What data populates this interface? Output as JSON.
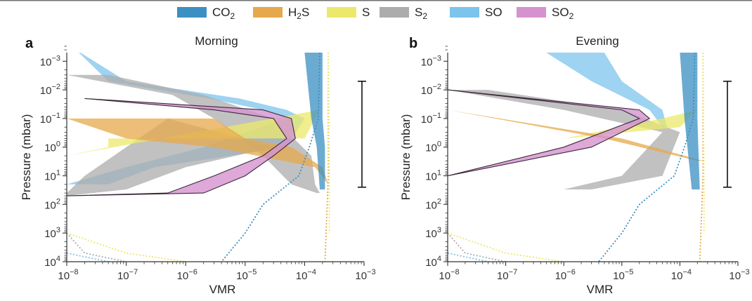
{
  "legend": [
    {
      "key": "co2",
      "label": "CO",
      "sub": "2",
      "color": "#3b8fc2"
    },
    {
      "key": "h2s",
      "label": "H",
      "sub": "2",
      "label2": "S",
      "color": "#e5a84a"
    },
    {
      "key": "s",
      "label": "S",
      "color": "#ece86a"
    },
    {
      "key": "s2",
      "label": "S",
      "sub": "2",
      "color": "#acacac"
    },
    {
      "key": "so",
      "label": "SO",
      "color": "#7dc4ec"
    },
    {
      "key": "so2",
      "label": "SO",
      "sub": "2",
      "color": "#d692cf"
    }
  ],
  "axes": {
    "xlabel": "VMR",
    "ylabel": "Pressure (mbar)",
    "x_ticks": [
      {
        "base": "10",
        "exp": "−8",
        "v": -8
      },
      {
        "base": "10",
        "exp": "−7",
        "v": -7
      },
      {
        "base": "10",
        "exp": "−6",
        "v": -6
      },
      {
        "base": "10",
        "exp": "−5",
        "v": -5
      },
      {
        "base": "10",
        "exp": "−4",
        "v": -4
      },
      {
        "base": "10",
        "exp": "−3",
        "v": -3
      }
    ],
    "y_ticks": [
      {
        "base": "10",
        "exp": "−3",
        "v": -3
      },
      {
        "base": "10",
        "exp": "−2",
        "v": -2
      },
      {
        "base": "10",
        "exp": "−1",
        "v": -1
      },
      {
        "base": "10",
        "exp": "0",
        "v": 0
      },
      {
        "base": "10",
        "exp": "1",
        "v": 1
      },
      {
        "base": "10",
        "exp": "2",
        "v": 2
      },
      {
        "base": "10",
        "exp": "3",
        "v": 3
      },
      {
        "base": "10",
        "exp": "4",
        "v": 4
      }
    ]
  },
  "chart_data": [
    {
      "type": "area",
      "letter": "a",
      "title": "Morning",
      "x_scale": "log",
      "y_scale": "log",
      "y_inverted": true,
      "xlim": [
        1e-08,
        0.001
      ],
      "ylim": [
        0.0005,
        10000
      ],
      "pressure_range_bar": [
        0.005,
        25
      ],
      "series": [
        {
          "name": "SO",
          "lo": [
            [
              0.0005,
              1.6e-08
            ],
            [
              0.005,
              5e-08
            ],
            [
              0.02,
              2.5e-06
            ],
            [
              0.05,
              2e-05
            ],
            [
              0.1,
              5e-05
            ],
            [
              1,
              2e-06
            ],
            [
              5,
              1e-07
            ],
            [
              20,
              1e-08
            ]
          ],
          "hi": [
            [
              0.0005,
              1.7e-08
            ],
            [
              0.005,
              1e-07
            ],
            [
              0.02,
              8e-06
            ],
            [
              0.05,
              5e-05
            ],
            [
              0.1,
              0.0001
            ],
            [
              1,
              5e-05
            ],
            [
              5,
              3e-07
            ],
            [
              20,
              5e-08
            ]
          ]
        },
        {
          "name": "S2",
          "lo": [
            [
              0.003,
              1e-08
            ],
            [
              0.015,
              6e-07
            ],
            [
              0.1,
              3e-06
            ],
            [
              2,
              2e-05
            ],
            [
              20,
              6e-05
            ],
            [
              40,
              0.00016
            ]
          ],
          "hi": [
            [
              0.003,
              5e-08
            ],
            [
              0.015,
              2e-06
            ],
            [
              0.1,
              3e-05
            ],
            [
              2,
              0.00013
            ],
            [
              20,
              0.00015
            ],
            [
              40,
              0.00018
            ]
          ],
          "extra": [
            [
              0.1,
              5e-07
            ],
            [
              1,
              1e-07
            ],
            [
              10,
              2e-08
            ],
            [
              40,
              1e-08
            ],
            [
              50,
              1e-08
            ],
            [
              30,
              1e-07
            ],
            [
              5,
              1e-06
            ],
            [
              1,
              3e-05
            ]
          ]
        },
        {
          "name": "S",
          "lo": [
            [
              0.5,
              5e-08
            ],
            [
              1,
              5e-08
            ],
            [
              2,
              1e-08
            ]
          ],
          "hi": [
            [
              0.5,
              0.0001
            ],
            [
              0.1,
              0.00015
            ],
            [
              0.05,
              0.00018
            ]
          ]
        },
        {
          "name": "H2S",
          "lo": [
            [
              0.1,
              1e-08
            ],
            [
              0.5,
              1e-07
            ],
            [
              1,
              3e-06
            ],
            [
              5,
              0.00015
            ],
            [
              20,
              0.00025
            ]
          ],
          "hi": [
            [
              0.1,
              3e-06
            ],
            [
              0.5,
              1e-05
            ],
            [
              1,
              6e-05
            ],
            [
              5,
              0.0002
            ],
            [
              20,
              0.00025
            ]
          ]
        },
        {
          "name": "SO2",
          "lo": [
            [
              0.02,
              2e-08
            ],
            [
              0.05,
              3e-06
            ],
            [
              0.1,
              3e-05
            ],
            [
              0.5,
              5e-05
            ],
            [
              2,
              2e-05
            ],
            [
              10,
              3e-06
            ],
            [
              40,
              5e-07
            ],
            [
              50,
              1e-08
            ]
          ],
          "hi": [
            [
              0.02,
              2e-08
            ],
            [
              0.05,
              2e-05
            ],
            [
              0.1,
              6e-05
            ],
            [
              0.5,
              7e-05
            ],
            [
              2,
              3e-05
            ],
            [
              10,
              1e-05
            ],
            [
              40,
              2e-06
            ],
            [
              50,
              1e-08
            ]
          ]
        },
        {
          "name": "CO2",
          "lo": [
            [
              0.0005,
              0.0001
            ],
            [
              0.1,
              0.00013
            ],
            [
              1,
              0.00016
            ],
            [
              30,
              0.00018
            ]
          ],
          "hi": [
            [
              0.0005,
              0.0002
            ],
            [
              0.1,
              0.0002
            ],
            [
              1,
              0.00022
            ],
            [
              30,
              0.00022
            ]
          ]
        }
      ]
    },
    {
      "type": "area",
      "letter": "b",
      "title": "Evening",
      "x_scale": "log",
      "y_scale": "log",
      "y_inverted": true,
      "xlim": [
        1e-08,
        0.001
      ],
      "ylim": [
        0.0005,
        10000
      ],
      "pressure_range_bar": [
        0.005,
        25
      ],
      "series": [
        {
          "name": "SO",
          "lo": [
            [
              0.0005,
              5e-07
            ],
            [
              0.005,
              3e-06
            ],
            [
              0.05,
              3e-05
            ],
            [
              0.2,
              5e-05
            ]
          ],
          "hi": [
            [
              0.0005,
              5e-06
            ],
            [
              0.005,
              1e-05
            ],
            [
              0.05,
              5e-05
            ],
            [
              0.2,
              6e-05
            ]
          ]
        },
        {
          "name": "S2",
          "lo": [
            [
              0.01,
              1e-08
            ],
            [
              0.05,
              1e-06
            ],
            [
              0.3,
              5e-05
            ],
            [
              10,
              1e-05
            ],
            [
              30,
              1e-06
            ]
          ],
          "hi": [
            [
              0.01,
              5e-08
            ],
            [
              0.05,
              1e-05
            ],
            [
              0.3,
              0.0001
            ],
            [
              10,
              5e-05
            ],
            [
              30,
              3e-06
            ]
          ]
        },
        {
          "name": "S",
          "lo": [
            [
              0.5,
              1e-06
            ],
            [
              0.1,
              5e-05
            ]
          ],
          "hi": [
            [
              0.2,
              0.0001
            ],
            [
              0.05,
              0.0002
            ]
          ]
        },
        {
          "name": "H2S",
          "lo": [
            [
              0.05,
              1e-08
            ],
            [
              0.5,
              5e-06
            ],
            [
              3,
              0.0002
            ]
          ],
          "hi": [
            [
              0.05,
              1e-08
            ],
            [
              0.5,
              1e-05
            ],
            [
              3,
              0.00025
            ]
          ]
        },
        {
          "name": "SO2",
          "lo": [
            [
              0.01,
              1e-08
            ],
            [
              0.05,
              1e-05
            ],
            [
              0.1,
              2e-05
            ],
            [
              1,
              1e-06
            ],
            [
              10,
              1e-08
            ]
          ],
          "hi": [
            [
              0.01,
              1e-08
            ],
            [
              0.05,
              2e-05
            ],
            [
              0.1,
              3e-05
            ],
            [
              1,
              3e-06
            ],
            [
              10,
              1e-08
            ]
          ]
        },
        {
          "name": "CO2",
          "lo": [
            [
              0.0005,
              0.0001
            ],
            [
              0.1,
              0.00012
            ],
            [
              30,
              0.00016
            ]
          ],
          "hi": [
            [
              0.0005,
              0.0002
            ],
            [
              0.1,
              0.0002
            ],
            [
              30,
              0.00022
            ]
          ]
        }
      ]
    }
  ]
}
